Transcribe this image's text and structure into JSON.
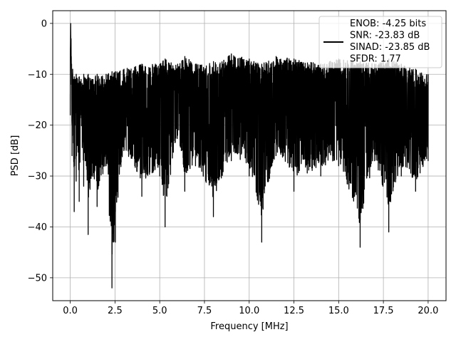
{
  "chart_data": {
    "type": "line",
    "xlabel": "Frequency [MHz]",
    "ylabel": "PSD [dB]",
    "xlim": [
      -0.98,
      21.0
    ],
    "ylim": [
      -54.5,
      2.5
    ],
    "xticks": [
      0.0,
      2.5,
      5.0,
      7.5,
      10.0,
      12.5,
      15.0,
      17.5,
      20.0
    ],
    "xtick_labels": [
      "0.0",
      "2.5",
      "5.0",
      "7.5",
      "10.0",
      "12.5",
      "15.0",
      "17.5",
      "20.0"
    ],
    "yticks": [
      0,
      -10,
      -20,
      -30,
      -40,
      -50
    ],
    "ytick_labels": [
      "0",
      "−10",
      "−20",
      "−30",
      "−40",
      "−50"
    ],
    "grid": true,
    "legend_position": "top-right",
    "series": [
      {
        "name": "ENOB: -4.25 bits\nSNR: -23.83 dB\nSINAD: -23.85 dB\nSFDR: 1.77",
        "color": "#000000",
        "x_range": [
          0.0,
          20.0
        ],
        "dense_noise": true,
        "x": [
          0.0,
          0.02,
          0.04,
          0.07,
          0.1,
          0.13,
          0.17,
          0.22,
          0.27,
          0.33,
          0.4,
          0.5,
          0.6,
          0.75,
          0.9,
          1.0,
          1.2,
          1.5,
          2.0,
          2.33,
          2.52,
          3.0,
          4.0,
          5.0,
          5.3,
          6.0,
          6.4,
          7.0,
          8.0,
          9.0,
          10.0,
          10.7,
          11.5,
          12.5,
          14.0,
          15.0,
          16.2,
          17.0,
          17.8,
          18.5,
          19.3,
          20.0
        ],
        "y": [
          -18.0,
          -1.0,
          -6.0,
          -12.0,
          -26.0,
          -14.0,
          -22.0,
          -37.0,
          -20.0,
          -31.0,
          -24.0,
          -35.0,
          -18.0,
          -32.0,
          -28.0,
          -41.5,
          -30.0,
          -36.0,
          -28.0,
          -52.0,
          -43.0,
          -25.0,
          -34.0,
          -30.0,
          -40.0,
          -22.0,
          -33.0,
          -28.0,
          -38.0,
          -27.0,
          -30.0,
          -43.0,
          -26.0,
          -33.0,
          -30.0,
          -28.0,
          -44.0,
          -27.0,
          -41.0,
          -30.0,
          -33.0,
          -27.0
        ],
        "y_upper": [
          -6.0,
          0.0,
          -3.0,
          -8.0,
          -10.0,
          -9.0,
          -11.0,
          -10.5,
          -11.0,
          -10.0,
          -11.0,
          -10.5,
          -11.0,
          -10.0,
          -11.0,
          -10.0,
          -11.0,
          -10.0,
          -10.0,
          -9.5,
          -9.5,
          -9.0,
          -8.0,
          -8.0,
          -7.0,
          -8.0,
          -6.5,
          -8.0,
          -7.5,
          -6.0,
          -7.0,
          -8.0,
          -6.5,
          -7.0,
          -8.0,
          -7.0,
          -7.5,
          -8.0,
          -7.0,
          -8.0,
          -9.0,
          -10.0
        ]
      }
    ]
  }
}
